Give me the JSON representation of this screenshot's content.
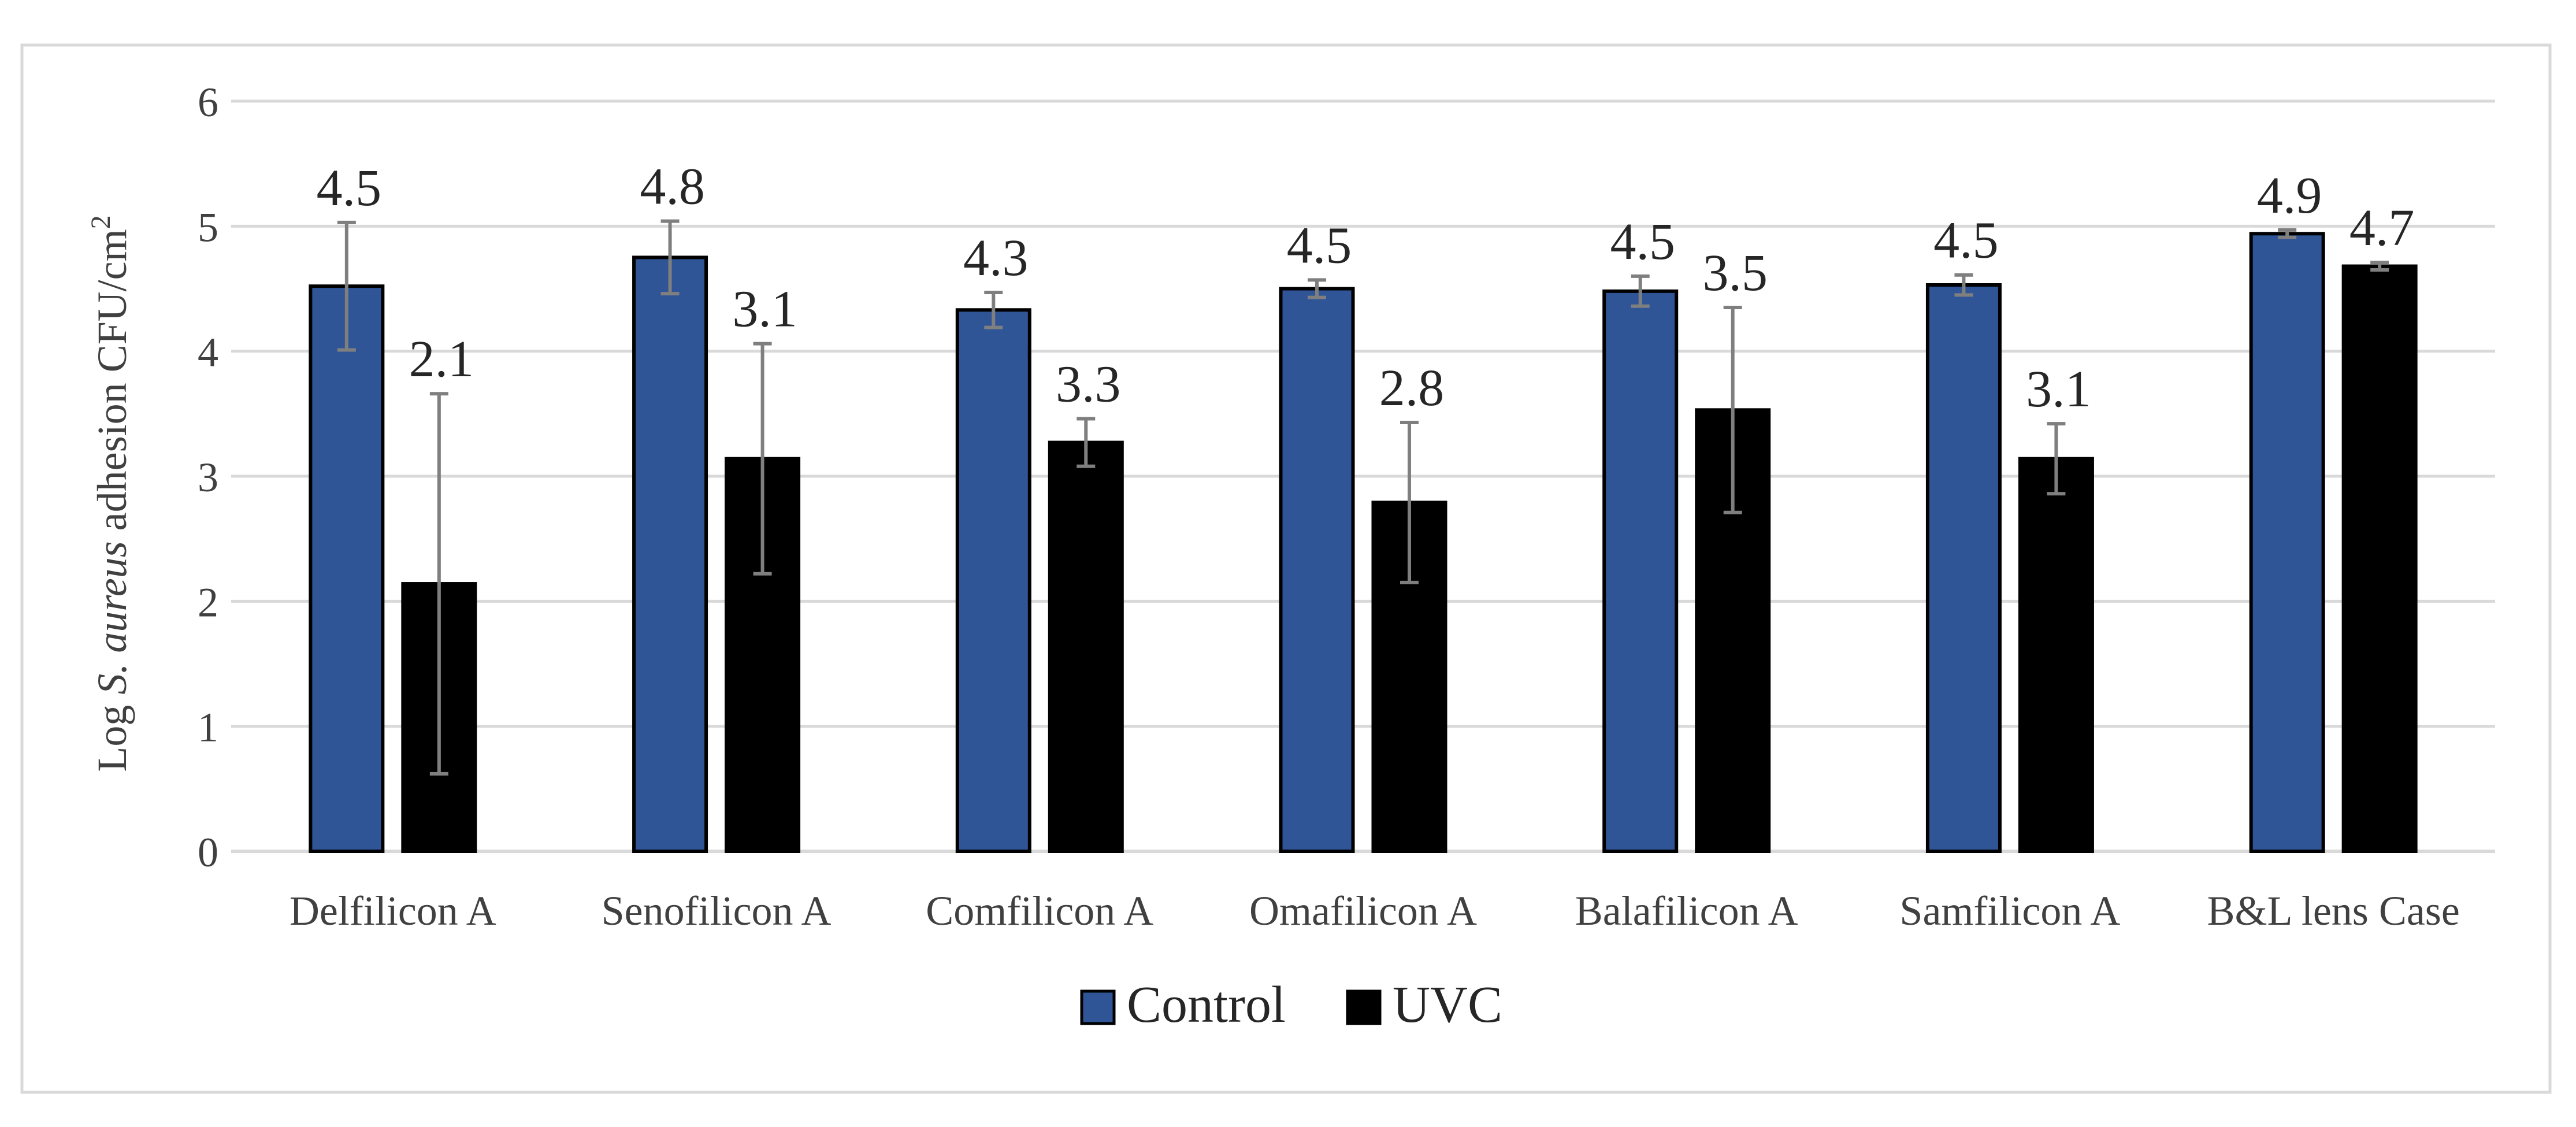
{
  "chart_data": {
    "type": "bar",
    "title": "",
    "xlabel": "",
    "ylabel": {
      "prefix": "Log ",
      "italic": "S. aureus",
      "suffix": " adhesion CFU/cm",
      "superscript": "2"
    },
    "ylim": [
      0,
      6
    ],
    "yticks": [
      0,
      1,
      2,
      3,
      4,
      5,
      6
    ],
    "grid": true,
    "legend_position": "bottom",
    "categories": [
      "Delfilicon A",
      "Senofilicon A",
      "Comfilicon A",
      "Omafilicon A",
      "Balafilicon A",
      "Samfilicon A",
      "B&L lens Case"
    ],
    "series": [
      {
        "name": "Control",
        "color": "#2F5597",
        "values": [
          4.52,
          4.75,
          4.33,
          4.5,
          4.48,
          4.53,
          4.94
        ],
        "errors": [
          0.51,
          0.29,
          0.14,
          0.07,
          0.12,
          0.08,
          0.03
        ],
        "labels": [
          "4.5",
          "4.8",
          "4.3",
          "4.5",
          "4.5",
          "4.5",
          "4.9"
        ]
      },
      {
        "name": "UVC",
        "color": "#000000",
        "values": [
          2.14,
          3.14,
          3.27,
          2.79,
          3.53,
          3.14,
          4.68
        ],
        "errors": [
          1.52,
          0.92,
          0.19,
          0.64,
          0.82,
          0.28,
          0.03
        ],
        "labels": [
          "2.1",
          "3.1",
          "3.3",
          "2.8",
          "3.5",
          "3.1",
          "4.7"
        ]
      }
    ]
  }
}
